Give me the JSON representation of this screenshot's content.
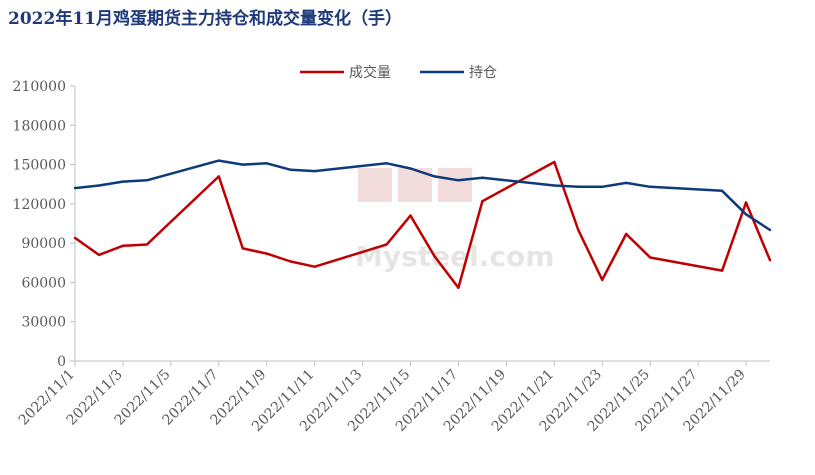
{
  "chart_data": {
    "type": "line",
    "title": "2022年11月鸡蛋期货主力持仓和成交量变化（手）",
    "watermark": "Mysteel.com",
    "ylim": [
      0,
      210000
    ],
    "yticks": [
      0,
      30000,
      60000,
      90000,
      120000,
      150000,
      180000,
      210000
    ],
    "xlim": [
      "2022/11/1",
      "2022/11/30"
    ],
    "xticks": [
      "2022/11/1",
      "2022/11/3",
      "2022/11/5",
      "2022/11/7",
      "2022/11/9",
      "2022/11/11",
      "2022/11/13",
      "2022/11/15",
      "2022/11/17",
      "2022/11/19",
      "2022/11/21",
      "2022/11/23",
      "2022/11/25",
      "2022/11/27",
      "2022/11/29"
    ],
    "legend_position": "top-center",
    "series": [
      {
        "name": "成交量",
        "color": "#c00000",
        "x": [
          "2022/11/1",
          "2022/11/2",
          "2022/11/3",
          "2022/11/4",
          "2022/11/7",
          "2022/11/8",
          "2022/11/9",
          "2022/11/10",
          "2022/11/11",
          "2022/11/14",
          "2022/11/15",
          "2022/11/16",
          "2022/11/17",
          "2022/11/18",
          "2022/11/21",
          "2022/11/22",
          "2022/11/23",
          "2022/11/24",
          "2022/11/25",
          "2022/11/28",
          "2022/11/29",
          "2022/11/30"
        ],
        "values": [
          94000,
          81000,
          88000,
          89000,
          141000,
          86000,
          82000,
          76000,
          72000,
          89000,
          111000,
          80000,
          56000,
          122000,
          152000,
          100000,
          62000,
          97000,
          79000,
          69000,
          121000,
          77000
        ]
      },
      {
        "name": "持仓",
        "color": "#0d3a7a",
        "x": [
          "2022/11/1",
          "2022/11/2",
          "2022/11/3",
          "2022/11/4",
          "2022/11/7",
          "2022/11/8",
          "2022/11/9",
          "2022/11/10",
          "2022/11/11",
          "2022/11/14",
          "2022/11/15",
          "2022/11/16",
          "2022/11/17",
          "2022/11/18",
          "2022/11/21",
          "2022/11/22",
          "2022/11/23",
          "2022/11/24",
          "2022/11/25",
          "2022/11/28",
          "2022/11/29",
          "2022/11/30"
        ],
        "values": [
          132000,
          134000,
          137000,
          138000,
          153000,
          150000,
          151000,
          146000,
          145000,
          151000,
          147000,
          141000,
          138000,
          140000,
          134000,
          133000,
          133000,
          136000,
          133000,
          130000,
          112000,
          100000
        ]
      }
    ]
  }
}
